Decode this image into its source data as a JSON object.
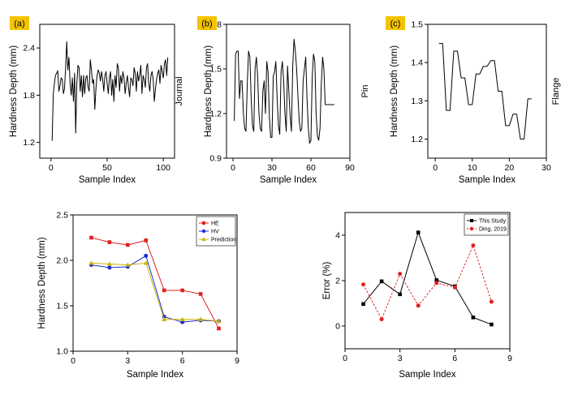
{
  "figure": {
    "panel_label_color": "#f5c400"
  },
  "chart_data": [
    {
      "id": "a",
      "type": "line",
      "panel_label": "(a)",
      "xlabel": "Sample Index",
      "ylabel": "Hardness Depth (mm)",
      "side_label": "Journal",
      "xlim": [
        -10,
        110
      ],
      "ylim": [
        1.0,
        2.7
      ],
      "xticks": [
        0,
        50,
        100
      ],
      "xtick_labels": [
        "0",
        "50",
        "100"
      ],
      "yticks": [
        1.2,
        1.8,
        2.4
      ],
      "ytick_labels": [
        "1.2",
        "1.8",
        "2.4"
      ],
      "series": [
        {
          "name": "Journal",
          "color": "#000000",
          "x": [
            1,
            2,
            3,
            4,
            5,
            6,
            7,
            8,
            9,
            10,
            11,
            12,
            13,
            14,
            15,
            16,
            17,
            18,
            19,
            20,
            21,
            22,
            23,
            24,
            25,
            26,
            27,
            28,
            29,
            30,
            31,
            32,
            33,
            34,
            35,
            36,
            37,
            38,
            39,
            40,
            41,
            42,
            43,
            44,
            45,
            46,
            47,
            48,
            49,
            50,
            51,
            52,
            53,
            54,
            55,
            56,
            57,
            58,
            59,
            60,
            61,
            62,
            63,
            64,
            65,
            66,
            67,
            68,
            69,
            70,
            71,
            72,
            73,
            74,
            75,
            76,
            77,
            78,
            79,
            80,
            81,
            82,
            83,
            84,
            85,
            86,
            87,
            88,
            89,
            90,
            91,
            92,
            93,
            94,
            95,
            96,
            97,
            98,
            99,
            100,
            101,
            102,
            103,
            104
          ],
          "y": [
            1.22,
            1.81,
            1.95,
            2.05,
            2.08,
            2.11,
            1.85,
            1.92,
            2.02,
            2.0,
            1.82,
            1.88,
            2.15,
            2.48,
            2.12,
            2.28,
            1.95,
            1.8,
            2.02,
            1.72,
            2.08,
            1.32,
            1.95,
            2.18,
            2.15,
            1.85,
            2.05,
            1.78,
            2.05,
            1.82,
            2.02,
            2.05,
            1.9,
            1.85,
            2.25,
            2.12,
            1.95,
            2.0,
            1.62,
            1.88,
            2.05,
            2.12,
            2.08,
            1.98,
            2.1,
            2.0,
            1.85,
            2.05,
            2.1,
            1.95,
            1.82,
            2.02,
            2.1,
            1.8,
            2.0,
            1.72,
            2.05,
            1.9,
            2.2,
            2.15,
            1.85,
            2.05,
            1.95,
            2.1,
            2.02,
            1.82,
            1.95,
            2.05,
            1.9,
            1.78,
            2.02,
            2.0,
            1.92,
            2.15,
            2.08,
            1.85,
            2.1,
            1.98,
            2.05,
            2.18,
            1.82,
            2.05,
            2.0,
            1.9,
            2.15,
            2.2,
            1.95,
            1.85,
            2.05,
            2.1,
            2.0,
            1.72,
            1.88,
            2.0,
            2.08,
            2.12,
            1.95,
            2.18,
            2.1,
            2.02,
            2.2,
            2.25,
            2.05,
            2.28
          ]
        }
      ]
    },
    {
      "id": "b",
      "type": "line",
      "panel_label": "(b)",
      "xlabel": "Sample Index",
      "ylabel": "Hardness Depth (mm)",
      "side_label": "Pin",
      "xlim": [
        -5,
        90
      ],
      "ylim": [
        0.9,
        1.8
      ],
      "xticks": [
        0,
        30,
        60,
        90
      ],
      "xtick_labels": [
        "0",
        "30",
        "60",
        "90"
      ],
      "yticks": [
        0.9,
        1.2,
        1.5,
        1.8
      ],
      "ytick_labels": [
        "0.9",
        "1.2",
        "1.5",
        "1.8"
      ],
      "series": [
        {
          "name": "Pin",
          "color": "#000000",
          "x": [
            1,
            2,
            3,
            4,
            5,
            6,
            7,
            8,
            9,
            10,
            11,
            12,
            13,
            14,
            15,
            16,
            17,
            18,
            19,
            20,
            21,
            22,
            23,
            24,
            25,
            26,
            27,
            28,
            29,
            30,
            31,
            32,
            33,
            34,
            35,
            36,
            37,
            38,
            39,
            40,
            41,
            42,
            43,
            44,
            45,
            46,
            47,
            48,
            49,
            50,
            51,
            52,
            53,
            54,
            55,
            56,
            57,
            58,
            59,
            60,
            61,
            62,
            63,
            64,
            65,
            66,
            67,
            68,
            69,
            70,
            71,
            72,
            73,
            74,
            75,
            76,
            77,
            78
          ],
          "y": [
            1.15,
            1.6,
            1.62,
            1.62,
            1.3,
            1.42,
            1.42,
            1.2,
            1.1,
            1.08,
            1.4,
            1.62,
            1.58,
            1.3,
            1.12,
            1.08,
            1.5,
            1.58,
            1.45,
            1.2,
            1.1,
            1.08,
            1.35,
            1.42,
            1.2,
            1.55,
            1.48,
            1.18,
            1.04,
            1.04,
            1.45,
            1.48,
            1.55,
            1.3,
            1.12,
            1.06,
            1.48,
            1.55,
            1.42,
            1.2,
            1.08,
            1.52,
            1.35,
            1.18,
            1.08,
            1.52,
            1.7,
            1.62,
            1.5,
            1.32,
            1.15,
            1.08,
            1.1,
            1.42,
            1.5,
            1.58,
            1.3,
            1.1,
            1.0,
            1.02,
            1.45,
            1.6,
            1.55,
            1.2,
            1.05,
            1.02,
            1.1,
            1.4,
            1.58,
            1.5,
            1.26,
            1.26,
            1.26,
            1.26,
            1.26,
            1.26,
            1.26,
            1.26
          ]
        }
      ]
    },
    {
      "id": "c",
      "type": "line",
      "panel_label": "(c)",
      "xlabel": "Sample Index",
      "ylabel": "Hardness Depth (mm)",
      "side_label": "Flange",
      "xlim": [
        -2,
        30
      ],
      "ylim": [
        1.15,
        1.5
      ],
      "xticks": [
        0,
        10,
        20,
        30
      ],
      "xtick_labels": [
        "0",
        "10",
        "20",
        "30"
      ],
      "yticks": [
        1.2,
        1.3,
        1.4,
        1.5
      ],
      "ytick_labels": [
        "1.2",
        "1.3",
        "1.4",
        "1.5"
      ],
      "series": [
        {
          "name": "Flange",
          "color": "#000000",
          "x": [
            1,
            2,
            3,
            4,
            5,
            6,
            7,
            8,
            9,
            10,
            11,
            12,
            13,
            14,
            15,
            16,
            17,
            18,
            19,
            20,
            21,
            22,
            23,
            24,
            25,
            26
          ],
          "y": [
            1.45,
            1.45,
            1.275,
            1.275,
            1.43,
            1.43,
            1.36,
            1.36,
            1.29,
            1.29,
            1.37,
            1.37,
            1.39,
            1.39,
            1.405,
            1.405,
            1.325,
            1.325,
            1.235,
            1.235,
            1.265,
            1.265,
            1.2,
            1.2,
            1.305,
            1.305
          ]
        }
      ]
    },
    {
      "id": "d",
      "type": "line",
      "xlabel": "Sample Index",
      "ylabel": "Hardness Depth (mm)",
      "xlim": [
        0,
        9
      ],
      "ylim": [
        1.0,
        2.5
      ],
      "xticks": [
        0,
        3,
        6,
        9
      ],
      "xtick_labels": [
        "0",
        "3",
        "6",
        "9"
      ],
      "yticks": [
        1.0,
        1.5,
        2.0,
        2.5
      ],
      "ytick_labels": [
        "1.0",
        "1.5",
        "2.0",
        "2.5"
      ],
      "legend_position": "top-right",
      "series": [
        {
          "name": "HE",
          "color": "#e02020",
          "marker": "square",
          "dashed": false,
          "x": [
            1,
            2,
            3,
            4,
            5,
            6,
            7,
            8
          ],
          "y": [
            2.25,
            2.2,
            2.17,
            2.22,
            1.67,
            1.67,
            1.63,
            1.25
          ]
        },
        {
          "name": "HV",
          "color": "#1f2ad4",
          "marker": "circle",
          "dashed": false,
          "x": [
            1,
            2,
            3,
            4,
            5,
            6,
            7,
            8
          ],
          "y": [
            1.95,
            1.92,
            1.93,
            2.05,
            1.38,
            1.32,
            1.34,
            1.33
          ]
        },
        {
          "name": "Prediction",
          "color": "#c9b300",
          "marker": "triangle",
          "dashed": false,
          "x": [
            1,
            2,
            3,
            4,
            5,
            6,
            7,
            8
          ],
          "y": [
            1.97,
            1.96,
            1.95,
            1.97,
            1.35,
            1.35,
            1.35,
            1.33
          ]
        }
      ]
    },
    {
      "id": "e",
      "type": "line",
      "xlabel": "Sample Index",
      "ylabel": "Error (%)",
      "xlim": [
        0,
        9
      ],
      "ylim": [
        -1.0,
        5.0
      ],
      "xticks": [
        0,
        3,
        6,
        9
      ],
      "xtick_labels": [
        "0",
        "3",
        "6",
        "9"
      ],
      "yticks": [
        0,
        2,
        4
      ],
      "ytick_labels": [
        "0",
        "2",
        "4"
      ],
      "legend_position": "top-right",
      "series": [
        {
          "name": "This Study",
          "color": "#000000",
          "marker": "square",
          "dashed": false,
          "x": [
            1,
            2,
            3,
            4,
            5,
            6,
            7,
            8
          ],
          "y": [
            0.97,
            1.97,
            1.4,
            4.12,
            2.02,
            1.75,
            0.38,
            0.07
          ]
        },
        {
          "name": "Ding, 2019",
          "color": "#e02020",
          "marker": "circle",
          "dashed": true,
          "x": [
            1,
            2,
            3,
            4,
            5,
            6,
            7,
            8
          ],
          "y": [
            1.83,
            0.3,
            2.3,
            0.9,
            1.9,
            1.7,
            3.55,
            1.07
          ]
        }
      ]
    }
  ]
}
